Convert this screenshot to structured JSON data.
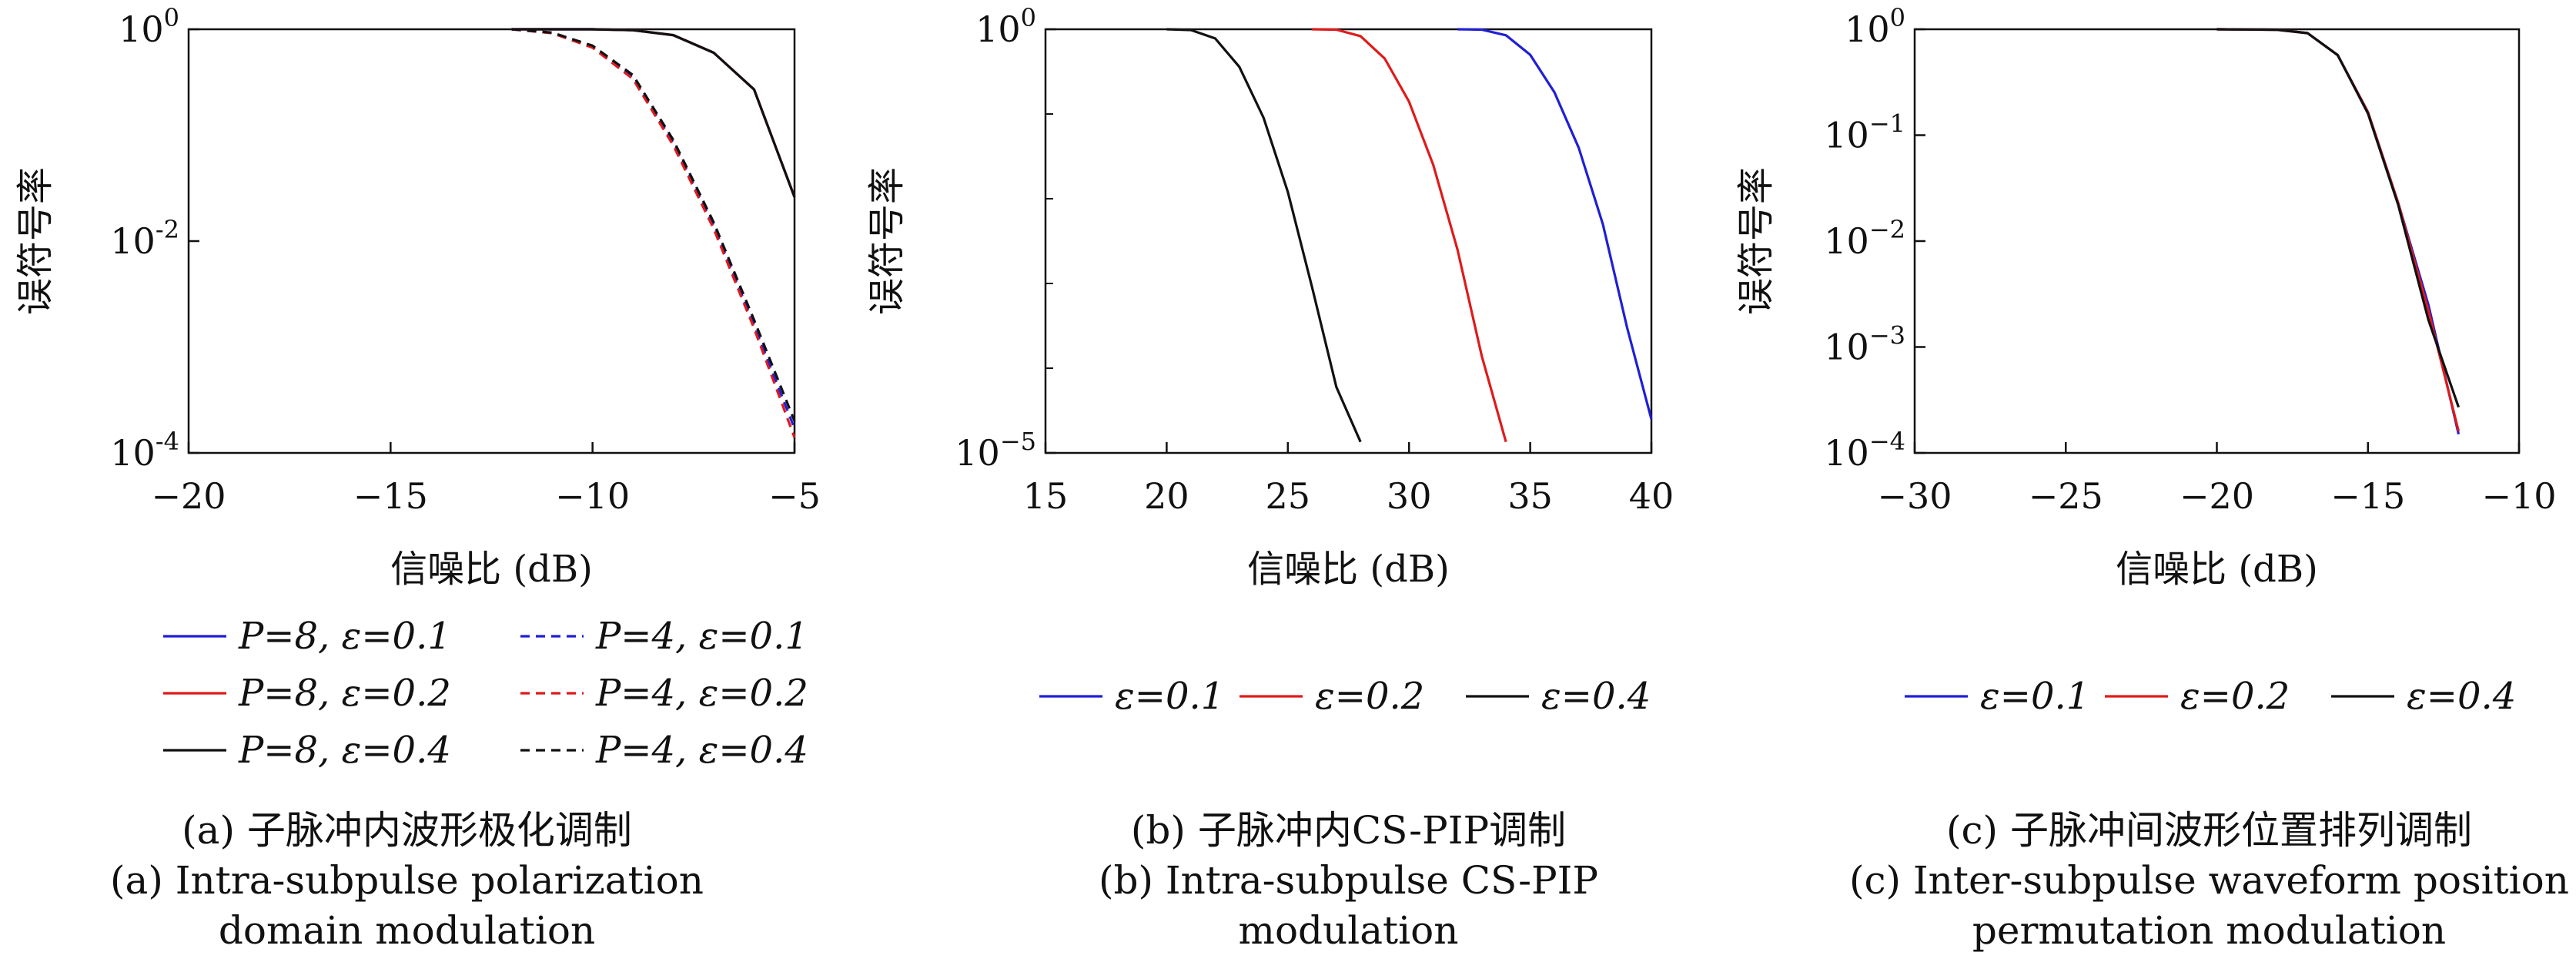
{
  "colors": {
    "blue": "#1f1fd6",
    "red": "#e01a1a",
    "black": "#111111"
  },
  "chart_data": [
    {
      "type": "line",
      "ylog": true,
      "xlim": [
        -20,
        -5
      ],
      "ylim": [
        0.0001,
        1
      ],
      "xticks": [
        -20,
        -15,
        -10,
        -5
      ],
      "xtick_labels": [
        "−20",
        "−15",
        "−10",
        "−5"
      ],
      "yticks": [
        1,
        0.01,
        0.0001
      ],
      "ytick_labels": [
        {
          "base": "10",
          "exp": "0"
        },
        {
          "base": "10",
          "exp": "-2"
        },
        {
          "base": "10",
          "exp": "-4"
        }
      ],
      "xlabel": "信噪比 (dB)",
      "ylabel": "误符号率",
      "legend": "bottom-two-columns",
      "series": [
        {
          "name": "P=8, ε=0.1",
          "color": "blue",
          "dash": false,
          "x": [
            -12,
            -11,
            -10,
            -9,
            -8,
            -7,
            -6,
            -5
          ],
          "y": [
            1,
            1,
            1,
            0.98,
            0.88,
            0.6,
            0.27,
            0.026
          ]
        },
        {
          "name": "P=8, ε=0.2",
          "color": "red",
          "dash": false,
          "x": [
            -12,
            -11,
            -10,
            -9,
            -8,
            -7,
            -6,
            -5
          ],
          "y": [
            1,
            1,
            1,
            0.98,
            0.88,
            0.6,
            0.27,
            0.026
          ]
        },
        {
          "name": "P=8, ε=0.4",
          "color": "black",
          "dash": false,
          "x": [
            -12,
            -11,
            -10,
            -9,
            -8,
            -7,
            -6,
            -5
          ],
          "y": [
            1,
            1,
            1,
            0.98,
            0.88,
            0.6,
            0.27,
            0.026
          ]
        },
        {
          "name": "P=4, ε=0.1",
          "color": "blue",
          "dash": true,
          "x": [
            -12,
            -11,
            -10,
            -9,
            -8,
            -7,
            -6,
            -5
          ],
          "y": [
            1,
            0.92,
            0.68,
            0.35,
            0.085,
            0.014,
            0.0016,
            0.00017
          ]
        },
        {
          "name": "P=4, ε=0.2",
          "color": "red",
          "dash": true,
          "x": [
            -12,
            -11,
            -10,
            -9,
            -8,
            -7,
            -6,
            -5
          ],
          "y": [
            1,
            0.92,
            0.67,
            0.34,
            0.08,
            0.013,
            0.0015,
            0.00014
          ]
        },
        {
          "name": "P=4, ε=0.4",
          "color": "black",
          "dash": true,
          "x": [
            -12,
            -11,
            -10,
            -9,
            -8,
            -7,
            -6,
            -5
          ],
          "y": [
            1,
            0.93,
            0.7,
            0.37,
            0.09,
            0.015,
            0.0018,
            0.0002
          ]
        }
      ],
      "caption": [
        "(a) 子脉冲内波形极化调制",
        "(a) Intra-subpulse polarization",
        "domain modulation"
      ]
    },
    {
      "type": "line",
      "ylog": true,
      "xlim": [
        15,
        40
      ],
      "ylim": [
        1e-05,
        1
      ],
      "xticks": [
        15,
        20,
        25,
        30,
        35,
        40
      ],
      "xtick_labels": [
        "15",
        "20",
        "25",
        "30",
        "35",
        "40"
      ],
      "yticks": [
        1,
        1e-05
      ],
      "ytick_labels": [
        {
          "base": "10",
          "exp": "0"
        },
        {
          "base": "10",
          "exp": "−5"
        }
      ],
      "yminor_ticks": [
        0.1,
        0.01,
        0.001,
        0.0001
      ],
      "xlabel": "信噪比 (dB)",
      "ylabel": "误符号率",
      "legend": "bottom-one-row",
      "series": [
        {
          "name": "ε=0.1",
          "color": "blue",
          "dash": false,
          "x": [
            32,
            33,
            34,
            35,
            36,
            37,
            38,
            39,
            40
          ],
          "y": [
            1,
            0.99,
            0.85,
            0.5,
            0.18,
            0.04,
            0.005,
            0.0003,
            2.5e-05
          ]
        },
        {
          "name": "ε=0.2",
          "color": "red",
          "dash": false,
          "x": [
            26,
            27,
            28,
            29,
            30,
            31,
            32,
            33,
            34
          ],
          "y": [
            1,
            0.99,
            0.83,
            0.45,
            0.14,
            0.025,
            0.0025,
            0.00014,
            1.35e-05
          ]
        },
        {
          "name": "ε=0.4",
          "color": "black",
          "dash": false,
          "x": [
            20,
            21,
            22,
            23,
            24,
            25,
            26,
            27,
            28
          ],
          "y": [
            1,
            0.98,
            0.78,
            0.36,
            0.09,
            0.012,
            0.0009,
            6e-05,
            1.35e-05
          ]
        }
      ],
      "caption": [
        "(b) 子脉冲内CS-PIP调制",
        "(b) Intra-subpulse CS-PIP",
        "modulation"
      ]
    },
    {
      "type": "line",
      "ylog": true,
      "xlim": [
        -30,
        -10
      ],
      "ylim": [
        0.0001,
        1
      ],
      "xticks": [
        -30,
        -25,
        -20,
        -15,
        -10
      ],
      "xtick_labels": [
        "−30",
        "−25",
        "−20",
        "−15",
        "−10"
      ],
      "yticks": [
        1,
        0.1,
        0.01,
        0.001,
        0.0001
      ],
      "ytick_labels": [
        {
          "base": "10",
          "exp": "0"
        },
        {
          "base": "10",
          "exp": "−1"
        },
        {
          "base": "10",
          "exp": "−2"
        },
        {
          "base": "10",
          "exp": "−3"
        },
        {
          "base": "10",
          "exp": "−4"
        }
      ],
      "xlabel": "信噪比 (dB)",
      "ylabel": "误符号率",
      "legend": "bottom-one-row",
      "series": [
        {
          "name": "ε=0.1",
          "color": "blue",
          "dash": false,
          "x": [
            -20,
            -18,
            -17,
            -16,
            -15,
            -14,
            -13,
            -12
          ],
          "y": [
            1,
            0.99,
            0.92,
            0.57,
            0.165,
            0.023,
            0.0025,
            0.00015
          ]
        },
        {
          "name": "ε=0.2",
          "color": "red",
          "dash": false,
          "x": [
            -20,
            -18,
            -17,
            -16,
            -15,
            -14,
            -13,
            -12
          ],
          "y": [
            1,
            0.99,
            0.92,
            0.57,
            0.165,
            0.023,
            0.0022,
            0.00016
          ]
        },
        {
          "name": "ε=0.4",
          "color": "black",
          "dash": false,
          "x": [
            -20,
            -18,
            -17,
            -16,
            -15,
            -14,
            -13,
            -12
          ],
          "y": [
            1,
            0.99,
            0.92,
            0.57,
            0.16,
            0.022,
            0.0018,
            0.00027
          ]
        }
      ],
      "caption": [
        "(c) 子脉冲间波形位置排列调制",
        "(c) Inter-subpulse waveform position",
        "permutation modulation"
      ]
    }
  ]
}
